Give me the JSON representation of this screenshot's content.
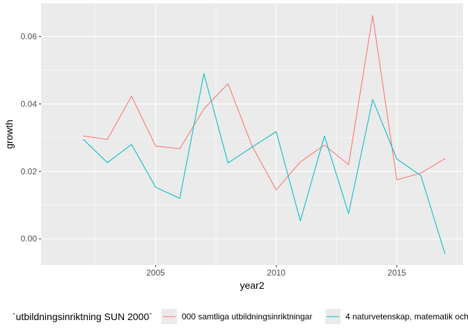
{
  "chart_data": {
    "type": "line",
    "xlabel": "year2",
    "ylabel": "growth",
    "xlim": [
      2000.25,
      2017.75
    ],
    "ylim": [
      -0.0078,
      0.0698
    ],
    "x_ticks": [
      2005,
      2010,
      2015
    ],
    "x_tick_labels": [
      "2005",
      "2010",
      "2015"
    ],
    "y_ticks": [
      0.0,
      0.02,
      0.04,
      0.06
    ],
    "y_tick_labels": [
      "0.00",
      "0.02",
      "0.04",
      "0.06"
    ],
    "grid": true,
    "legend_position": "bottom",
    "legend_title": "`utbildningsinriktning SUN 2000`",
    "x": [
      2002,
      2003,
      2004,
      2005,
      2006,
      2007,
      2008,
      2009,
      2010,
      2011,
      2012,
      2013,
      2014,
      2015,
      2016,
      2017
    ],
    "series": [
      {
        "name": "000 samtliga utbildningsinriktningar",
        "color": "#F8766D",
        "values": [
          0.0305,
          0.0295,
          0.0423,
          0.0275,
          0.0267,
          0.0385,
          0.046,
          0.0275,
          0.0145,
          0.0228,
          0.0278,
          0.022,
          0.0662,
          0.0175,
          0.0195,
          0.0238
        ]
      },
      {
        "name": "4 naturvetenskap, matematik och",
        "color": "#00BFC4",
        "values": [
          0.0295,
          0.0226,
          0.028,
          0.0153,
          0.012,
          0.049,
          0.0225,
          0.0272,
          0.0318,
          0.0053,
          0.0305,
          0.0075,
          0.0413,
          0.0237,
          0.0187,
          -0.0045
        ]
      }
    ]
  },
  "colors": {
    "panel_background": "#EBEBEB",
    "grid_major": "#FFFFFF",
    "tick_text": "#4D4D4D"
  }
}
